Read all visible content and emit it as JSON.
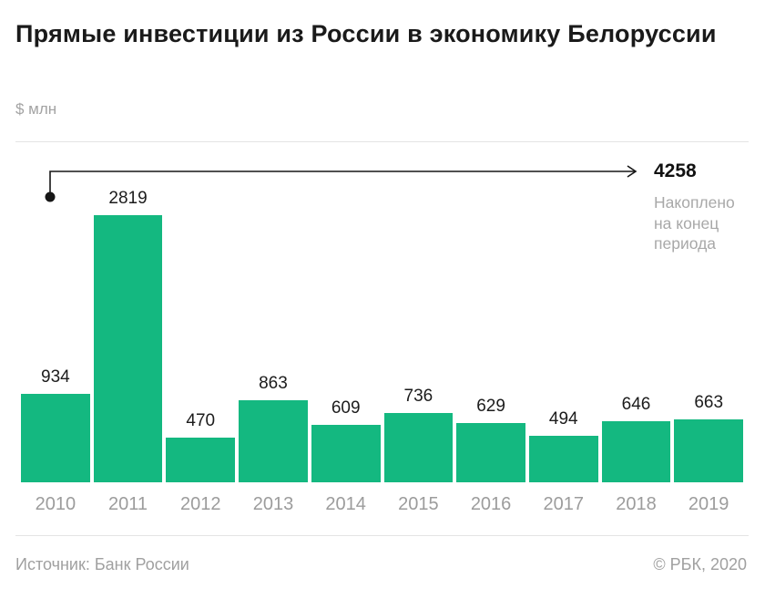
{
  "header": {
    "title": "Прямые инвестиции из России в экономику Белоруссии",
    "subtitle": "$ млн"
  },
  "annotation": {
    "total": "4258",
    "caption": "Накоплено\nна конец\nпериода"
  },
  "chart_data": {
    "type": "bar",
    "categories": [
      "2010",
      "2011",
      "2012",
      "2013",
      "2014",
      "2015",
      "2016",
      "2017",
      "2018",
      "2019"
    ],
    "values": [
      934,
      2819,
      470,
      863,
      609,
      736,
      629,
      494,
      646,
      663
    ],
    "title": "Прямые инвестиции из России в экономику Белоруссии",
    "xlabel": "",
    "ylabel": "$ млн",
    "ylim": [
      0,
      2819
    ],
    "grid": false,
    "legend": "none",
    "bar_color": "#14b880",
    "label_color": "#1c1c1c",
    "annotation": {
      "value": 4258,
      "label": "Накоплено на конец периода"
    }
  },
  "footer": {
    "source": "Источник: Банк России",
    "copyright": "© РБК, 2020"
  }
}
